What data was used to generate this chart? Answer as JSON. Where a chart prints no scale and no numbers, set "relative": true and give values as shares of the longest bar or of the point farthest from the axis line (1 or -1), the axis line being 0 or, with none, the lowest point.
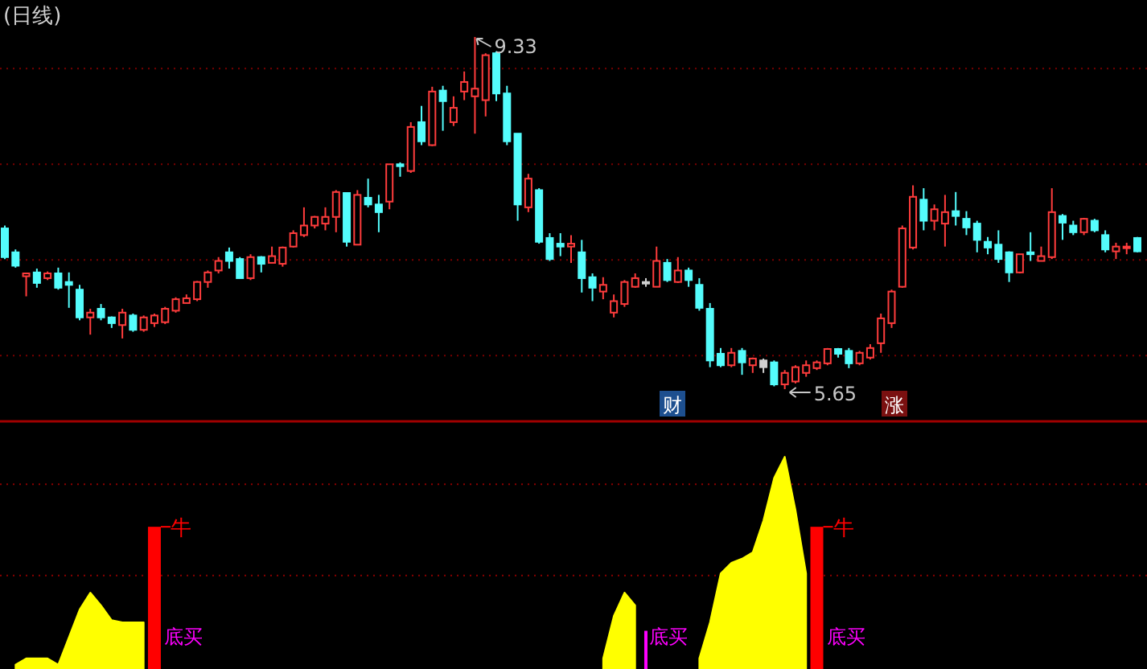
{
  "chart_data": [
    {
      "type": "candlestick",
      "title": "(日线)",
      "categories": [
        null,
        null,
        null,
        null,
        null,
        null,
        null,
        null,
        null,
        null,
        null,
        null,
        null,
        null,
        null,
        null,
        null,
        null,
        null,
        null,
        null,
        null,
        null,
        null,
        null,
        null,
        null,
        null,
        null,
        null,
        null,
        null,
        null,
        null,
        null,
        null,
        null,
        null,
        null,
        null,
        null,
        null,
        null,
        null,
        null,
        null,
        null,
        null,
        null,
        null,
        null,
        null,
        null,
        null,
        null,
        null,
        null,
        null,
        null,
        null,
        null,
        null,
        null,
        null,
        null,
        null,
        null,
        null,
        null,
        null,
        null,
        null,
        null,
        null,
        null,
        null,
        null,
        null,
        null,
        null,
        null,
        null,
        null,
        null,
        null,
        null,
        null,
        null,
        null,
        null,
        null,
        null,
        null,
        null,
        null,
        null,
        null,
        null,
        null,
        null,
        null,
        null,
        null,
        null,
        null,
        null,
        null
      ],
      "ohlc": [
        [
          7.33,
          7.36,
          7.01,
          7.03
        ],
        [
          7.08,
          7.11,
          6.92,
          6.94
        ],
        [
          6.83,
          6.86,
          6.62,
          6.86
        ],
        [
          6.87,
          6.91,
          6.71,
          6.76
        ],
        [
          6.81,
          6.88,
          6.79,
          6.86
        ],
        [
          6.86,
          6.92,
          6.69,
          6.71
        ],
        [
          6.77,
          6.87,
          6.5,
          6.74
        ],
        [
          6.69,
          6.74,
          6.37,
          6.4
        ],
        [
          6.4,
          6.49,
          6.22,
          6.45
        ],
        [
          6.49,
          6.54,
          6.37,
          6.4
        ],
        [
          6.4,
          6.41,
          6.29,
          6.34
        ],
        [
          6.32,
          6.49,
          6.18,
          6.45
        ],
        [
          6.42,
          6.44,
          6.25,
          6.27
        ],
        [
          6.27,
          6.42,
          6.25,
          6.4
        ],
        [
          6.34,
          6.44,
          6.3,
          6.42
        ],
        [
          6.35,
          6.51,
          6.33,
          6.49
        ],
        [
          6.47,
          6.61,
          6.45,
          6.59
        ],
        [
          6.55,
          6.64,
          6.55,
          6.6
        ],
        [
          6.59,
          6.78,
          6.57,
          6.77
        ],
        [
          6.77,
          6.89,
          6.71,
          6.87
        ],
        [
          6.89,
          7.03,
          6.86,
          6.99
        ],
        [
          7.08,
          7.13,
          6.91,
          6.99
        ],
        [
          7.01,
          7.03,
          6.81,
          6.81
        ],
        [
          6.81,
          7.06,
          6.79,
          7.03
        ],
        [
          7.03,
          7.04,
          6.87,
          6.96
        ],
        [
          6.97,
          7.14,
          6.97,
          7.04
        ],
        [
          6.96,
          7.14,
          6.93,
          7.13
        ],
        [
          7.14,
          7.31,
          7.13,
          7.28
        ],
        [
          7.26,
          7.55,
          7.24,
          7.36
        ],
        [
          7.36,
          7.46,
          7.33,
          7.45
        ],
        [
          7.38,
          7.55,
          7.31,
          7.45
        ],
        [
          7.45,
          7.73,
          7.29,
          7.71
        ],
        [
          7.7,
          7.7,
          7.14,
          7.19
        ],
        [
          7.16,
          7.73,
          7.16,
          7.68
        ],
        [
          7.65,
          7.85,
          7.55,
          7.58
        ],
        [
          7.58,
          7.68,
          7.29,
          7.5
        ],
        [
          7.61,
          8.0,
          7.53,
          8.0
        ],
        [
          8.0,
          8.02,
          7.87,
          7.98
        ],
        [
          7.93,
          8.44,
          7.91,
          8.39
        ],
        [
          8.44,
          8.61,
          8.2,
          8.24
        ],
        [
          8.2,
          8.81,
          8.19,
          8.76
        ],
        [
          8.77,
          8.82,
          8.35,
          8.66
        ],
        [
          8.44,
          8.71,
          8.4,
          8.59
        ],
        [
          8.76,
          8.97,
          8.67,
          8.86
        ],
        [
          8.71,
          9.33,
          8.32,
          8.79
        ],
        [
          8.67,
          9.16,
          8.5,
          9.14
        ],
        [
          9.16,
          9.18,
          8.66,
          8.74
        ],
        [
          8.74,
          8.82,
          8.2,
          8.24
        ],
        [
          8.32,
          8.32,
          7.41,
          7.58
        ],
        [
          7.55,
          7.9,
          7.5,
          7.85
        ],
        [
          7.73,
          7.75,
          7.17,
          7.19
        ],
        [
          7.23,
          7.28,
          6.99,
          7.01
        ],
        [
          7.17,
          7.28,
          7.04,
          7.14
        ],
        [
          7.14,
          7.26,
          6.97,
          7.17
        ],
        [
          7.08,
          7.21,
          6.66,
          6.81
        ],
        [
          6.82,
          6.86,
          6.57,
          6.71
        ],
        [
          6.67,
          6.82,
          6.59,
          6.74
        ],
        [
          6.45,
          6.64,
          6.4,
          6.57
        ],
        [
          6.54,
          6.79,
          6.51,
          6.77
        ],
        [
          6.72,
          6.86,
          6.71,
          6.81
        ],
        [
          6.77,
          6.81,
          6.72,
          6.76
        ],
        [
          6.72,
          7.14,
          6.72,
          6.99
        ],
        [
          6.97,
          7.01,
          6.77,
          6.79
        ],
        [
          6.77,
          7.03,
          6.76,
          6.89
        ],
        [
          6.89,
          6.92,
          6.72,
          6.79
        ],
        [
          6.74,
          6.81,
          6.47,
          6.5
        ],
        [
          6.49,
          6.55,
          5.88,
          5.95
        ],
        [
          6.02,
          6.08,
          5.88,
          5.9
        ],
        [
          5.9,
          6.08,
          5.88,
          6.03
        ],
        [
          6.05,
          6.08,
          5.8,
          5.93
        ],
        [
          5.9,
          5.98,
          5.82,
          5.97
        ],
        [
          5.95,
          5.97,
          5.82,
          5.88
        ],
        [
          5.93,
          5.95,
          5.68,
          5.7
        ],
        [
          5.7,
          5.85,
          5.65,
          5.82
        ],
        [
          5.73,
          5.9,
          5.71,
          5.88
        ],
        [
          5.82,
          5.95,
          5.78,
          5.9
        ],
        [
          5.87,
          5.95,
          5.85,
          5.93
        ],
        [
          5.92,
          6.08,
          5.9,
          6.07
        ],
        [
          6.07,
          6.08,
          5.98,
          6.02
        ],
        [
          6.05,
          6.08,
          5.87,
          5.92
        ],
        [
          5.92,
          6.05,
          5.9,
          6.03
        ],
        [
          5.98,
          6.12,
          5.96,
          6.08
        ],
        [
          6.13,
          6.44,
          6.03,
          6.39
        ],
        [
          6.34,
          6.69,
          6.29,
          6.67
        ],
        [
          6.72,
          7.36,
          6.71,
          7.33
        ],
        [
          7.13,
          7.78,
          7.11,
          7.66
        ],
        [
          7.63,
          7.75,
          7.31,
          7.41
        ],
        [
          7.41,
          7.58,
          7.31,
          7.53
        ],
        [
          7.38,
          7.68,
          7.14,
          7.5
        ],
        [
          7.51,
          7.71,
          7.36,
          7.46
        ],
        [
          7.43,
          7.51,
          7.26,
          7.34
        ],
        [
          7.38,
          7.41,
          7.08,
          7.21
        ],
        [
          7.19,
          7.24,
          7.06,
          7.13
        ],
        [
          7.16,
          7.31,
          6.97,
          7.01
        ],
        [
          7.08,
          7.09,
          6.77,
          6.87
        ],
        [
          6.87,
          7.06,
          6.86,
          7.06
        ],
        [
          7.08,
          7.29,
          6.99,
          7.06
        ],
        [
          6.99,
          7.14,
          6.99,
          7.04
        ],
        [
          7.03,
          7.75,
          7.01,
          7.5
        ],
        [
          7.46,
          7.48,
          7.21,
          7.39
        ],
        [
          7.36,
          7.41,
          7.26,
          7.29
        ],
        [
          7.29,
          7.44,
          7.26,
          7.43
        ],
        [
          7.41,
          7.43,
          7.29,
          7.31
        ],
        [
          7.26,
          7.31,
          7.08,
          7.11
        ],
        [
          7.09,
          7.18,
          7.01,
          7.14
        ],
        [
          7.13,
          7.18,
          7.06,
          7.14
        ],
        [
          7.23,
          7.24,
          7.08,
          7.09
        ]
      ],
      "colors": [
        "#54fcfc",
        "#54fcfc",
        "#ff3c3c",
        "#54fcfc",
        "#ff3c3c",
        "#54fcfc",
        "#54fcfc",
        "#54fcfc",
        "#ff3c3c",
        "#54fcfc",
        "#54fcfc",
        "#ff3c3c",
        "#54fcfc",
        "#ff3c3c",
        "#ff3c3c",
        "#ff3c3c",
        "#ff3c3c",
        "#ff3c3c",
        "#ff3c3c",
        "#ff3c3c",
        "#ff3c3c",
        "#54fcfc",
        "#54fcfc",
        "#ff3c3c",
        "#54fcfc",
        "#ff3c3c",
        "#ff3c3c",
        "#ff3c3c",
        "#ff3c3c",
        "#ff3c3c",
        "#ff3c3c",
        "#ff3c3c",
        "#54fcfc",
        "#ff3c3c",
        "#54fcfc",
        "#54fcfc",
        "#ff3c3c",
        "#54fcfc",
        "#ff3c3c",
        "#54fcfc",
        "#ff3c3c",
        "#54fcfc",
        "#ff3c3c",
        "#ff3c3c",
        "#ff3c3c",
        "#ff3c3c",
        "#54fcfc",
        "#54fcfc",
        "#54fcfc",
        "#ff3c3c",
        "#54fcfc",
        "#54fcfc",
        "#54fcfc",
        "#ff3c3c",
        "#54fcfc",
        "#54fcfc",
        "#ff3c3c",
        "#ff3c3c",
        "#ff3c3c",
        "#ff3c3c",
        "#d0d0d0",
        "#ff3c3c",
        "#54fcfc",
        "#ff3c3c",
        "#54fcfc",
        "#54fcfc",
        "#54fcfc",
        "#54fcfc",
        "#ff3c3c",
        "#54fcfc",
        "#ff3c3c",
        "#d0d0d0",
        "#54fcfc",
        "#ff3c3c",
        "#ff3c3c",
        "#ff3c3c",
        "#ff3c3c",
        "#ff3c3c",
        "#54fcfc",
        "#54fcfc",
        "#ff3c3c",
        "#ff3c3c",
        "#ff3c3c",
        "#ff3c3c",
        "#ff3c3c",
        "#ff3c3c",
        "#54fcfc",
        "#ff3c3c",
        "#ff3c3c",
        "#54fcfc",
        "#54fcfc",
        "#54fcfc",
        "#54fcfc",
        "#54fcfc",
        "#54fcfc",
        "#ff3c3c",
        "#54fcfc",
        "#ff3c3c",
        "#ff3c3c",
        "#54fcfc",
        "#54fcfc",
        "#ff3c3c",
        "#54fcfc",
        "#54fcfc",
        "#ff3c3c",
        "#ff3c3c",
        "#54fcfc"
      ],
      "ref_lines": [
        {
          "axis": "y",
          "value": 6,
          "line_style": "dotted",
          "color": "#7a0000"
        },
        {
          "axis": "y",
          "value": 7,
          "line_style": "dotted",
          "color": "#7a0000"
        },
        {
          "axis": "y",
          "value": 8,
          "line_style": "dotted",
          "color": "#7a0000"
        },
        {
          "axis": "y",
          "value": 9,
          "line_style": "dotted",
          "color": "#7a0000"
        }
      ],
      "annotations": [
        "9.33",
        "5.65",
        "财",
        "涨"
      ]
    },
    {
      "type": "area",
      "relative": true,
      "categories": [
        null,
        null,
        null,
        null,
        null,
        null,
        null,
        null,
        null,
        null,
        null,
        null,
        null,
        null,
        null,
        null,
        null,
        null,
        null,
        null,
        null,
        null,
        null,
        null,
        null,
        null,
        null,
        null,
        null,
        null,
        null,
        null,
        null,
        null,
        null,
        null,
        null,
        null,
        null,
        null,
        null,
        null,
        null,
        null,
        null,
        null,
        null,
        null,
        null,
        null,
        null,
        null,
        null,
        null,
        null,
        null,
        null,
        null,
        null,
        null,
        null,
        null,
        null,
        null,
        null,
        null,
        null,
        null,
        null,
        null,
        null,
        null,
        null,
        null,
        null,
        null,
        null,
        null,
        null,
        null,
        null,
        null,
        null,
        null,
        null,
        null,
        null,
        null,
        null,
        null,
        null,
        null,
        null,
        null,
        null,
        null,
        null,
        null,
        null,
        null,
        null,
        null,
        null,
        null,
        null,
        null,
        null
      ],
      "series": [
        {
          "type": "area",
          "color": "#ffff00",
          "values": [
            null,
            0.02,
            0.05,
            0.05,
            0.05,
            0.02,
            0.15,
            0.28,
            0.36,
            0.3,
            0.23,
            0.22,
            0.22,
            0.22,
            null,
            null,
            null,
            null,
            null,
            null,
            null,
            null,
            null,
            null,
            null,
            null,
            null,
            null,
            null,
            null,
            null,
            null,
            null,
            null,
            null,
            null,
            null,
            null,
            null,
            null,
            null,
            null,
            null,
            null,
            null,
            null,
            null,
            null,
            null,
            null,
            null,
            null,
            null,
            null,
            null,
            null,
            0.05,
            0.25,
            0.36,
            0.3,
            null,
            null,
            null,
            null,
            null,
            0.05,
            0.22,
            0.45,
            0.5,
            0.52,
            0.55,
            0.7,
            0.9,
            1.0,
            0.75,
            0.45,
            null,
            null,
            null,
            null,
            null,
            null,
            null,
            null,
            null,
            null,
            null,
            null,
            null,
            null,
            null,
            null,
            null,
            null,
            null,
            null,
            null,
            null,
            null,
            null,
            null,
            null,
            null,
            null,
            null,
            null,
            null
          ]
        },
        {
          "type": "bar",
          "color": "#ff0000",
          "values": [
            null,
            null,
            null,
            null,
            null,
            null,
            null,
            null,
            null,
            null,
            null,
            null,
            null,
            null,
            0.67,
            null,
            null,
            null,
            null,
            null,
            null,
            null,
            null,
            null,
            null,
            null,
            null,
            null,
            null,
            null,
            null,
            null,
            null,
            null,
            null,
            null,
            null,
            null,
            null,
            null,
            null,
            null,
            null,
            null,
            null,
            null,
            null,
            null,
            null,
            null,
            null,
            null,
            null,
            null,
            null,
            null,
            null,
            null,
            null,
            null,
            null,
            null,
            null,
            null,
            null,
            null,
            null,
            null,
            null,
            null,
            null,
            null,
            null,
            null,
            null,
            null,
            0.67,
            null,
            null,
            null,
            null,
            null,
            null,
            null,
            null,
            null,
            null,
            null,
            null,
            null,
            null,
            null,
            null,
            null,
            null,
            null,
            null,
            null,
            null,
            null,
            null,
            null,
            null,
            null,
            null,
            null,
            null
          ]
        },
        {
          "type": "bar",
          "color": "#ff00ff",
          "values": [
            null,
            null,
            null,
            null,
            null,
            null,
            null,
            null,
            null,
            null,
            null,
            null,
            null,
            null,
            null,
            null,
            null,
            null,
            null,
            null,
            null,
            null,
            null,
            null,
            null,
            null,
            null,
            null,
            null,
            null,
            null,
            null,
            null,
            null,
            null,
            null,
            null,
            null,
            null,
            null,
            null,
            null,
            null,
            null,
            null,
            null,
            null,
            null,
            null,
            null,
            null,
            null,
            null,
            null,
            null,
            null,
            null,
            null,
            null,
            null,
            0.18,
            null,
            null,
            null,
            null,
            null,
            null,
            null,
            null,
            null,
            null,
            null,
            null,
            null,
            null,
            null,
            null,
            null,
            null,
            null,
            null,
            null,
            null,
            null,
            null,
            null,
            null,
            null,
            null,
            null,
            null,
            null,
            null,
            null,
            null,
            null,
            null,
            null,
            null,
            null,
            null,
            null,
            null,
            null,
            null,
            null,
            null
          ]
        }
      ],
      "ref_lines": [
        {
          "axis": "y",
          "value": 0.44,
          "line_style": "dotted",
          "color": "#8b0000"
        },
        {
          "axis": "y",
          "value": 0.87,
          "line_style": "dotted",
          "color": "#8b0000"
        }
      ],
      "annotations": [
        "牛",
        "底买",
        "底买",
        "牛",
        "底买"
      ]
    }
  ]
}
